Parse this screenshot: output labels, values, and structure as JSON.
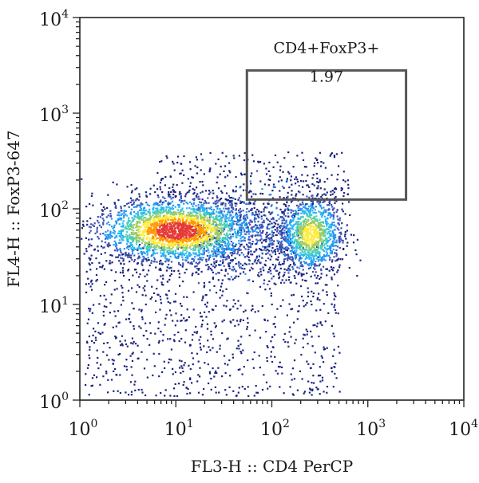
{
  "chart_data": {
    "type": "scatter",
    "subtype": "flow-cytometry-density-dot-plot",
    "xlabel": "FL3-H :: CD4 PerCP",
    "ylabel": "FL4-H :: FoxP3-647",
    "x_scale": "log",
    "y_scale": "log",
    "xlim": [
      1,
      10000
    ],
    "ylim": [
      1,
      10000
    ],
    "x_ticks": [
      {
        "value": 1,
        "base": "10",
        "exp": "0"
      },
      {
        "value": 10,
        "base": "10",
        "exp": "1"
      },
      {
        "value": 100,
        "base": "10",
        "exp": "2"
      },
      {
        "value": 1000,
        "base": "10",
        "exp": "3"
      },
      {
        "value": 10000,
        "base": "10",
        "exp": "4"
      }
    ],
    "y_ticks": [
      {
        "value": 1,
        "base": "10",
        "exp": "0"
      },
      {
        "value": 10,
        "base": "10",
        "exp": "1"
      },
      {
        "value": 100,
        "base": "10",
        "exp": "2"
      },
      {
        "value": 1000,
        "base": "10",
        "exp": "3"
      },
      {
        "value": 10000,
        "base": "10",
        "exp": "4"
      }
    ],
    "grid": false,
    "populations": [
      {
        "center_x": 10,
        "center_y": 60,
        "peak_density": "high"
      },
      {
        "center_x": 250,
        "center_y": 55,
        "peak_density": "medium"
      }
    ],
    "gate": {
      "label": "CD4+FoxP3+",
      "value": "1.97",
      "x_range": [
        55,
        2500
      ],
      "y_range": [
        125,
        2800
      ]
    },
    "colormap": [
      "#1a237e",
      "#3f51b5",
      "#2196f3",
      "#29b6f6",
      "#4dd0b5",
      "#9ccc65",
      "#ffeb3b",
      "#ff9800",
      "#e53935"
    ]
  }
}
